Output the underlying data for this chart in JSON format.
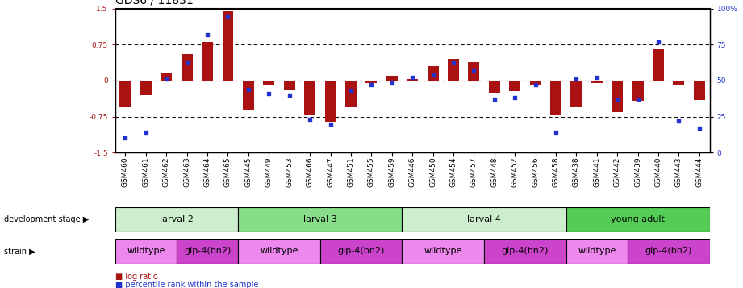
{
  "title": "GDS6 / 11831",
  "samples": [
    "GSM460",
    "GSM461",
    "GSM462",
    "GSM463",
    "GSM464",
    "GSM465",
    "GSM445",
    "GSM449",
    "GSM453",
    "GSM466",
    "GSM447",
    "GSM451",
    "GSM455",
    "GSM459",
    "GSM446",
    "GSM450",
    "GSM454",
    "GSM457",
    "GSM448",
    "GSM452",
    "GSM456",
    "GSM458",
    "GSM438",
    "GSM441",
    "GSM442",
    "GSM439",
    "GSM440",
    "GSM443",
    "GSM444"
  ],
  "log_ratio": [
    -0.55,
    -0.3,
    0.15,
    0.55,
    0.8,
    1.45,
    -0.6,
    -0.08,
    -0.18,
    -0.7,
    -0.85,
    -0.55,
    -0.05,
    0.1,
    0.04,
    0.3,
    0.45,
    0.38,
    -0.25,
    -0.22,
    -0.08,
    -0.7,
    -0.55,
    -0.05,
    -0.65,
    -0.42,
    0.65,
    -0.08,
    -0.4
  ],
  "percentile": [
    10,
    14,
    51,
    63,
    82,
    95,
    44,
    41,
    40,
    23,
    20,
    43,
    47,
    49,
    52,
    54,
    63,
    57,
    37,
    38,
    47,
    14,
    51,
    52,
    37,
    37,
    77,
    22,
    17
  ],
  "dev_stages": [
    {
      "label": "larval 2",
      "start": 0,
      "end": 6,
      "color": "#cceecc"
    },
    {
      "label": "larval 3",
      "start": 6,
      "end": 14,
      "color": "#88dd88"
    },
    {
      "label": "larval 4",
      "start": 14,
      "end": 22,
      "color": "#cceecc"
    },
    {
      "label": "young adult",
      "start": 22,
      "end": 29,
      "color": "#55cc55"
    }
  ],
  "strains": [
    {
      "label": "wildtype",
      "start": 0,
      "end": 3,
      "color": "#ee88ee"
    },
    {
      "label": "glp-4(bn2)",
      "start": 3,
      "end": 6,
      "color": "#cc44cc"
    },
    {
      "label": "wildtype",
      "start": 6,
      "end": 10,
      "color": "#ee88ee"
    },
    {
      "label": "glp-4(bn2)",
      "start": 10,
      "end": 14,
      "color": "#cc44cc"
    },
    {
      "label": "wildtype",
      "start": 14,
      "end": 18,
      "color": "#ee88ee"
    },
    {
      "label": "glp-4(bn2)",
      "start": 18,
      "end": 22,
      "color": "#cc44cc"
    },
    {
      "label": "wildtype",
      "start": 22,
      "end": 25,
      "color": "#ee88ee"
    },
    {
      "label": "glp-4(bn2)",
      "start": 25,
      "end": 29,
      "color": "#cc44cc"
    }
  ],
  "bar_color": "#aa1111",
  "dot_color": "#2233cc",
  "ylim": [
    -1.5,
    1.5
  ],
  "yticks_left": [
    -1.5,
    -0.75,
    0.0,
    0.75,
    1.5
  ],
  "yticks_right": [
    0,
    25,
    50,
    75,
    100
  ],
  "dotted_lines_black": [
    -0.75,
    0.75
  ],
  "zero_line_color": "#cc2222",
  "background_color": "#ffffff",
  "chart_area_color": "#ffffff",
  "grid_color": "#111111",
  "title_fontsize": 10,
  "tick_fontsize": 6.5,
  "label_fontsize": 8,
  "annot_fontsize": 7,
  "bar_width": 0.55
}
